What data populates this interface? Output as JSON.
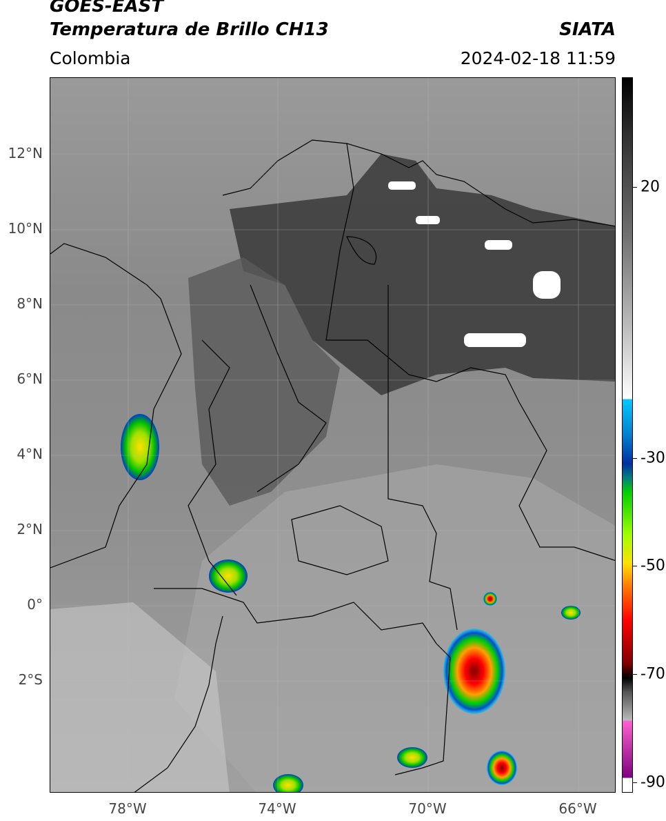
{
  "header": {
    "satellite": "GOES-EAST",
    "product": "Temperatura de Brillo CH13",
    "brand": "SIATA",
    "region": "Colombia",
    "datetime": "2024-02-18 11:59"
  },
  "map": {
    "lat_ticks": [
      "12°N",
      "10°N",
      "8°N",
      "6°N",
      "4°N",
      "2°N",
      "0°",
      "2°S"
    ],
    "lon_ticks": [
      "78°W",
      "74°W",
      "70°W",
      "66°W"
    ]
  },
  "colorbar": {
    "labels": [
      "20",
      "-30",
      "-50",
      "-70",
      "-90"
    ],
    "colors": {
      "black": "#000000",
      "white": "#ffffff",
      "cyan": "#00c8ff",
      "blue": "#0030a0",
      "green": "#00d000",
      "yellow": "#ffe000",
      "orange": "#ff8000",
      "red": "#ff0000",
      "darkred": "#800000",
      "magenta": "#ff60d0",
      "purple": "#800080"
    }
  }
}
